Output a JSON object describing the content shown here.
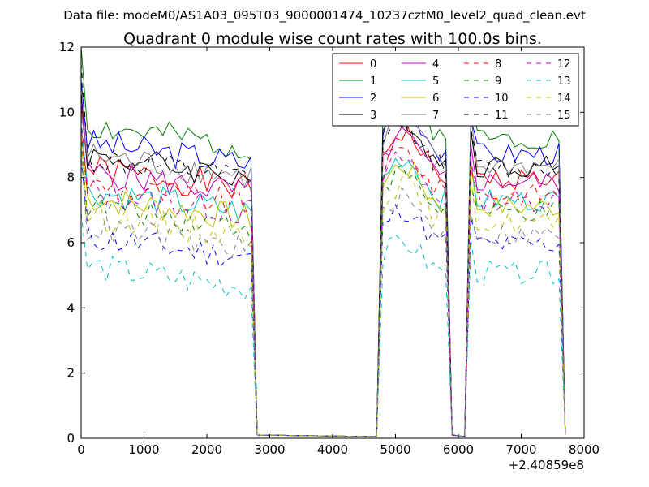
{
  "chart_data": {
    "type": "line",
    "suptitle": "Data file: modeM0/AS1A03_095T03_9000001474_10237cztM0_level2_quad_clean.evt",
    "title": "Quadrant 0 module wise count rates with 100.0s bins.",
    "xlabel": "",
    "ylabel": "",
    "x_offset_label": "+2.40859e8",
    "xlim": [
      0,
      8000
    ],
    "ylim": [
      0,
      12
    ],
    "x_ticks": [
      "0",
      "1000",
      "2000",
      "3000",
      "4000",
      "5000",
      "6000",
      "7000",
      "8000"
    ],
    "y_ticks": [
      "0",
      "2",
      "4",
      "6",
      "8",
      "10",
      "12"
    ],
    "legend_position": "upper-right",
    "segments": [
      {
        "start": 0,
        "count": 28
      },
      {
        "start": 4800,
        "count": 11
      },
      {
        "start": 6200,
        "count": 15
      }
    ],
    "series": [
      {
        "name": "0",
        "color": "#ff0000",
        "dash": "solid",
        "level": 8.3,
        "first": 10.2,
        "seed": 1
      },
      {
        "name": "1",
        "color": "#008000",
        "dash": "solid",
        "level": 9.6,
        "first": 12.0,
        "seed": 2
      },
      {
        "name": "2",
        "color": "#0000ff",
        "dash": "solid",
        "level": 9.1,
        "first": 11.0,
        "seed": 3
      },
      {
        "name": "3",
        "color": "#000000",
        "dash": "solid",
        "level": 8.7,
        "first": 10.6,
        "seed": 4
      },
      {
        "name": "4",
        "color": "#bf00bf",
        "dash": "solid",
        "level": 8.2,
        "first": 10.3,
        "seed": 5
      },
      {
        "name": "5",
        "color": "#00bfbf",
        "dash": "solid",
        "level": 7.6,
        "first": 9.6,
        "seed": 6
      },
      {
        "name": "6",
        "color": "#bfbf00",
        "dash": "solid",
        "level": 7.4,
        "first": 9.3,
        "seed": 7
      },
      {
        "name": "7",
        "color": "#808080",
        "dash": "solid",
        "level": 8.7,
        "first": 10.0,
        "seed": 8
      },
      {
        "name": "8",
        "color": "#ff0000",
        "dash": "dashed",
        "level": 7.8,
        "first": 9.4,
        "seed": 9
      },
      {
        "name": "9",
        "color": "#008000",
        "dash": "dashed",
        "level": 7.2,
        "first": 9.1,
        "seed": 10
      },
      {
        "name": "10",
        "color": "#0000ff",
        "dash": "dashed",
        "level": 6.2,
        "first": 8.6,
        "seed": 11
      },
      {
        "name": "11",
        "color": "#000000",
        "dash": "dashed",
        "level": 8.6,
        "first": 11.5,
        "seed": 12
      },
      {
        "name": "12",
        "color": "#bf00bf",
        "dash": "dashed",
        "level": 7.6,
        "first": 9.8,
        "seed": 13
      },
      {
        "name": "13",
        "color": "#00bfbf",
        "dash": "dashed",
        "level": 5.3,
        "first": 6.9,
        "seed": 14
      },
      {
        "name": "14",
        "color": "#bfbf00",
        "dash": "dashed",
        "level": 6.9,
        "first": 9.0,
        "seed": 15
      },
      {
        "name": "15",
        "color": "#808080",
        "dash": "dashed",
        "level": 6.5,
        "first": 8.8,
        "seed": 16
      }
    ]
  }
}
